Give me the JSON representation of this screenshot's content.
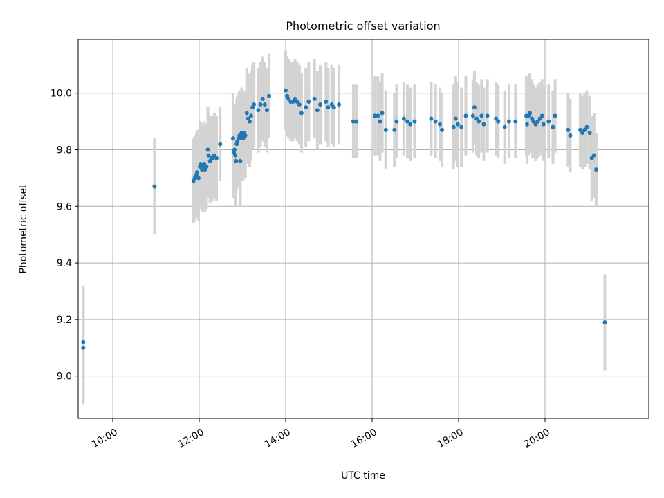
{
  "chart_data": {
    "type": "scatter",
    "title": "Photometric offset variation",
    "xlabel": "UTC time",
    "ylabel": "Photometric offset",
    "x_unit": "UTC time (HH:MM)",
    "xlim": [
      "09:12",
      "22:24"
    ],
    "ylim": [
      8.85,
      10.19
    ],
    "x_ticks": [
      "10:00",
      "12:00",
      "14:00",
      "16:00",
      "18:00",
      "20:00"
    ],
    "y_ticks": [
      "9.0",
      "9.2",
      "9.4",
      "9.6",
      "9.8",
      "10.0"
    ],
    "grid": true,
    "legend": "none",
    "colors": {
      "point": "#1f77b4",
      "errorbar": "#d3d3d3",
      "grid": "#b0b0b0"
    },
    "series": [
      {
        "x": [
          "09:19",
          "09:19",
          "10:58",
          "11:52",
          "11:54",
          "11:56",
          "11:57",
          "11:59",
          "12:01",
          "12:02",
          "12:04",
          "12:05",
          "12:07",
          "12:08",
          "12:10",
          "12:12",
          "12:13",
          "12:15",
          "12:17",
          "12:18",
          "12:21",
          "12:24",
          "12:29",
          "12:47",
          "12:48",
          "12:49",
          "12:50",
          "12:51",
          "12:52",
          "12:53",
          "12:55",
          "12:56",
          "12:57",
          "12:58",
          "12:59",
          "13:01",
          "13:02",
          "13:04",
          "13:06",
          "13:08",
          "13:10",
          "13:12",
          "13:14",
          "13:16",
          "13:22",
          "13:25",
          "13:28",
          "13:31",
          "13:34",
          "13:37",
          "14:00",
          "14:02",
          "14:04",
          "14:07",
          "14:10",
          "14:13",
          "14:16",
          "14:19",
          "14:22",
          "14:28",
          "14:32",
          "14:40",
          "14:44",
          "14:48",
          "14:56",
          "14:59",
          "15:04",
          "15:07",
          "15:14",
          "15:34",
          "15:38",
          "16:04",
          "16:08",
          "16:11",
          "16:14",
          "16:19",
          "16:31",
          "16:34",
          "16:44",
          "16:49",
          "16:53",
          "16:59",
          "17:22",
          "17:28",
          "17:34",
          "17:37",
          "17:53",
          "17:56",
          "17:59",
          "18:04",
          "18:10",
          "18:20",
          "18:22",
          "18:25",
          "18:28",
          "18:32",
          "18:35",
          "18:40",
          "18:52",
          "18:55",
          "19:04",
          "19:10",
          "19:19",
          "19:34",
          "19:35",
          "19:37",
          "19:39",
          "19:42",
          "19:44",
          "19:47",
          "19:50",
          "19:53",
          "19:56",
          "19:58",
          "20:05",
          "20:11",
          "20:14",
          "20:32",
          "20:35",
          "20:49",
          "20:52",
          "20:55",
          "20:58",
          "21:02",
          "21:05",
          "21:08",
          "21:11",
          "21:23"
        ],
        "y": [
          9.1,
          9.12,
          9.67,
          9.69,
          9.7,
          9.71,
          9.72,
          9.7,
          9.74,
          9.75,
          9.73,
          9.74,
          9.75,
          9.73,
          9.74,
          9.8,
          9.78,
          9.76,
          9.77,
          9.77,
          9.78,
          9.77,
          9.82,
          9.84,
          9.79,
          9.8,
          9.78,
          9.76,
          9.82,
          9.83,
          9.84,
          9.85,
          9.76,
          9.85,
          9.86,
          9.84,
          9.86,
          9.85,
          9.93,
          9.91,
          9.9,
          9.92,
          9.95,
          9.96,
          9.94,
          9.96,
          9.98,
          9.96,
          9.94,
          9.99,
          10.01,
          9.99,
          9.98,
          9.97,
          9.97,
          9.98,
          9.97,
          9.96,
          9.93,
          9.95,
          9.97,
          9.98,
          9.94,
          9.96,
          9.97,
          9.95,
          9.96,
          9.95,
          9.96,
          9.9,
          9.9,
          9.92,
          9.92,
          9.9,
          9.93,
          9.87,
          9.87,
          9.9,
          9.91,
          9.9,
          9.89,
          9.9,
          9.91,
          9.9,
          9.89,
          9.87,
          9.88,
          9.91,
          9.89,
          9.88,
          9.92,
          9.92,
          9.95,
          9.91,
          9.9,
          9.92,
          9.89,
          9.92,
          9.91,
          9.9,
          9.88,
          9.9,
          9.9,
          9.92,
          9.89,
          9.92,
          9.93,
          9.91,
          9.9,
          9.89,
          9.9,
          9.91,
          9.92,
          9.89,
          9.9,
          9.88,
          9.92,
          9.87,
          9.85,
          9.87,
          9.86,
          9.87,
          9.88,
          9.86,
          9.77,
          9.78,
          9.73,
          9.19
        ],
        "err": [
          0.2,
          0.2,
          0.17,
          0.15,
          0.15,
          0.15,
          0.15,
          0.15,
          0.15,
          0.15,
          0.15,
          0.15,
          0.15,
          0.15,
          0.15,
          0.15,
          0.15,
          0.15,
          0.15,
          0.15,
          0.15,
          0.15,
          0.13,
          0.16,
          0.16,
          0.16,
          0.16,
          0.16,
          0.16,
          0.16,
          0.16,
          0.16,
          0.16,
          0.16,
          0.16,
          0.15,
          0.15,
          0.15,
          0.16,
          0.16,
          0.16,
          0.16,
          0.15,
          0.15,
          0.15,
          0.15,
          0.15,
          0.15,
          0.15,
          0.15,
          0.14,
          0.14,
          0.14,
          0.14,
          0.14,
          0.14,
          0.14,
          0.14,
          0.14,
          0.14,
          0.14,
          0.14,
          0.14,
          0.14,
          0.14,
          0.14,
          0.14,
          0.14,
          0.14,
          0.13,
          0.13,
          0.14,
          0.14,
          0.14,
          0.14,
          0.14,
          0.13,
          0.13,
          0.13,
          0.13,
          0.13,
          0.13,
          0.13,
          0.13,
          0.13,
          0.13,
          0.15,
          0.15,
          0.15,
          0.14,
          0.14,
          0.13,
          0.13,
          0.13,
          0.13,
          0.13,
          0.13,
          0.13,
          0.13,
          0.13,
          0.13,
          0.13,
          0.13,
          0.14,
          0.14,
          0.14,
          0.14,
          0.14,
          0.13,
          0.13,
          0.13,
          0.13,
          0.13,
          0.13,
          0.13,
          0.13,
          0.13,
          0.13,
          0.13,
          0.13,
          0.13,
          0.13,
          0.13,
          0.13,
          0.15,
          0.15,
          0.13,
          0.17
        ]
      }
    ]
  }
}
